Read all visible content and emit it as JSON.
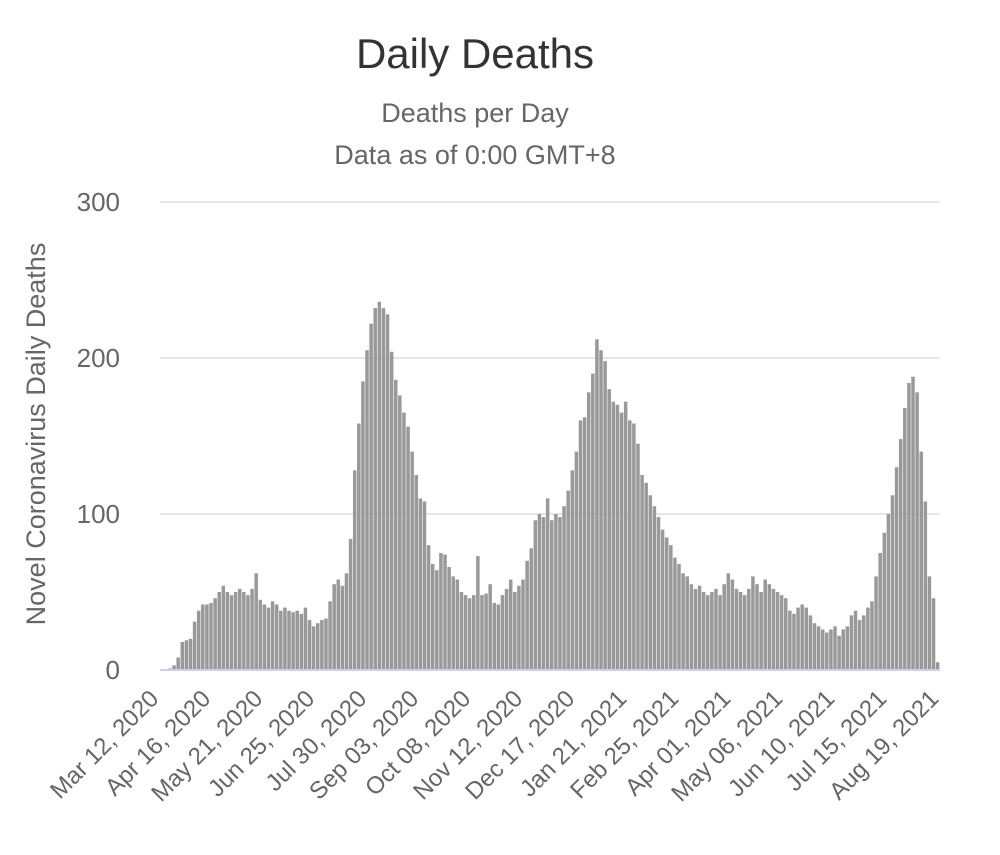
{
  "title": "Daily Deaths",
  "subtitle_line1": "Deaths per Day",
  "subtitle_line2": "Data as of 0:00 GMT+8",
  "chart_data": {
    "type": "bar",
    "title": "Daily Deaths",
    "subtitle": "Deaths per Day / Data as of 0:00 GMT+8",
    "xlabel": "",
    "ylabel": "Novel Coronavirus Daily Deaths",
    "ylim": [
      0,
      300
    ],
    "yticks": [
      0,
      100,
      200,
      300
    ],
    "grid": true,
    "legend": "none",
    "bar_color": "#999999",
    "xtick_labels": [
      "Mar 12, 2020",
      "Apr 16, 2020",
      "May 21, 2020",
      "Jun 25, 2020",
      "Jul 30, 2020",
      "Sep 03, 2020",
      "Oct 08, 2020",
      "Nov 12, 2020",
      "Dec 17, 2020",
      "Jan 21, 2021",
      "Feb 25, 2021",
      "Apr 01, 2021",
      "May 06, 2021",
      "Jun 10, 2021",
      "Jul 15, 2021",
      "Aug 19, 2021"
    ],
    "series": [
      {
        "values": [
          0,
          0,
          1,
          3,
          8,
          18,
          19,
          20,
          31,
          38,
          42,
          42,
          43,
          46,
          50,
          54,
          50,
          48,
          50,
          52,
          50,
          48,
          52,
          62,
          45,
          42,
          40,
          44,
          42,
          38,
          40,
          38,
          37,
          38,
          36,
          40,
          32,
          28,
          30,
          32,
          33,
          44,
          55,
          58,
          54,
          62,
          84,
          128,
          158,
          185,
          205,
          222,
          232,
          236,
          232,
          228,
          204,
          186,
          176,
          165,
          156,
          140,
          125,
          110,
          108,
          80,
          68,
          64,
          75,
          74,
          66,
          60,
          58,
          50,
          48,
          46,
          48,
          73,
          48,
          49,
          55,
          43,
          42,
          48,
          52,
          58,
          50,
          54,
          58,
          70,
          78,
          96,
          100,
          98,
          110,
          96,
          100,
          98,
          105,
          115,
          128,
          140,
          160,
          162,
          178,
          190,
          212,
          205,
          198,
          180,
          172,
          170,
          165,
          172,
          160,
          158,
          145,
          125,
          120,
          112,
          105,
          98,
          90,
          85,
          80,
          72,
          68,
          62,
          60,
          55,
          52,
          54,
          50,
          48,
          50,
          52,
          48,
          55,
          62,
          58,
          52,
          50,
          48,
          52,
          60,
          55,
          50,
          58,
          55,
          52,
          50,
          48,
          46,
          38,
          36,
          40,
          42,
          40,
          35,
          30,
          28,
          26,
          24,
          26,
          28,
          22,
          26,
          28,
          35,
          38,
          32,
          35,
          40,
          44,
          60,
          75,
          88,
          100,
          112,
          130,
          148,
          168,
          184,
          188,
          178,
          140,
          108,
          60,
          46,
          5
        ]
      }
    ]
  }
}
